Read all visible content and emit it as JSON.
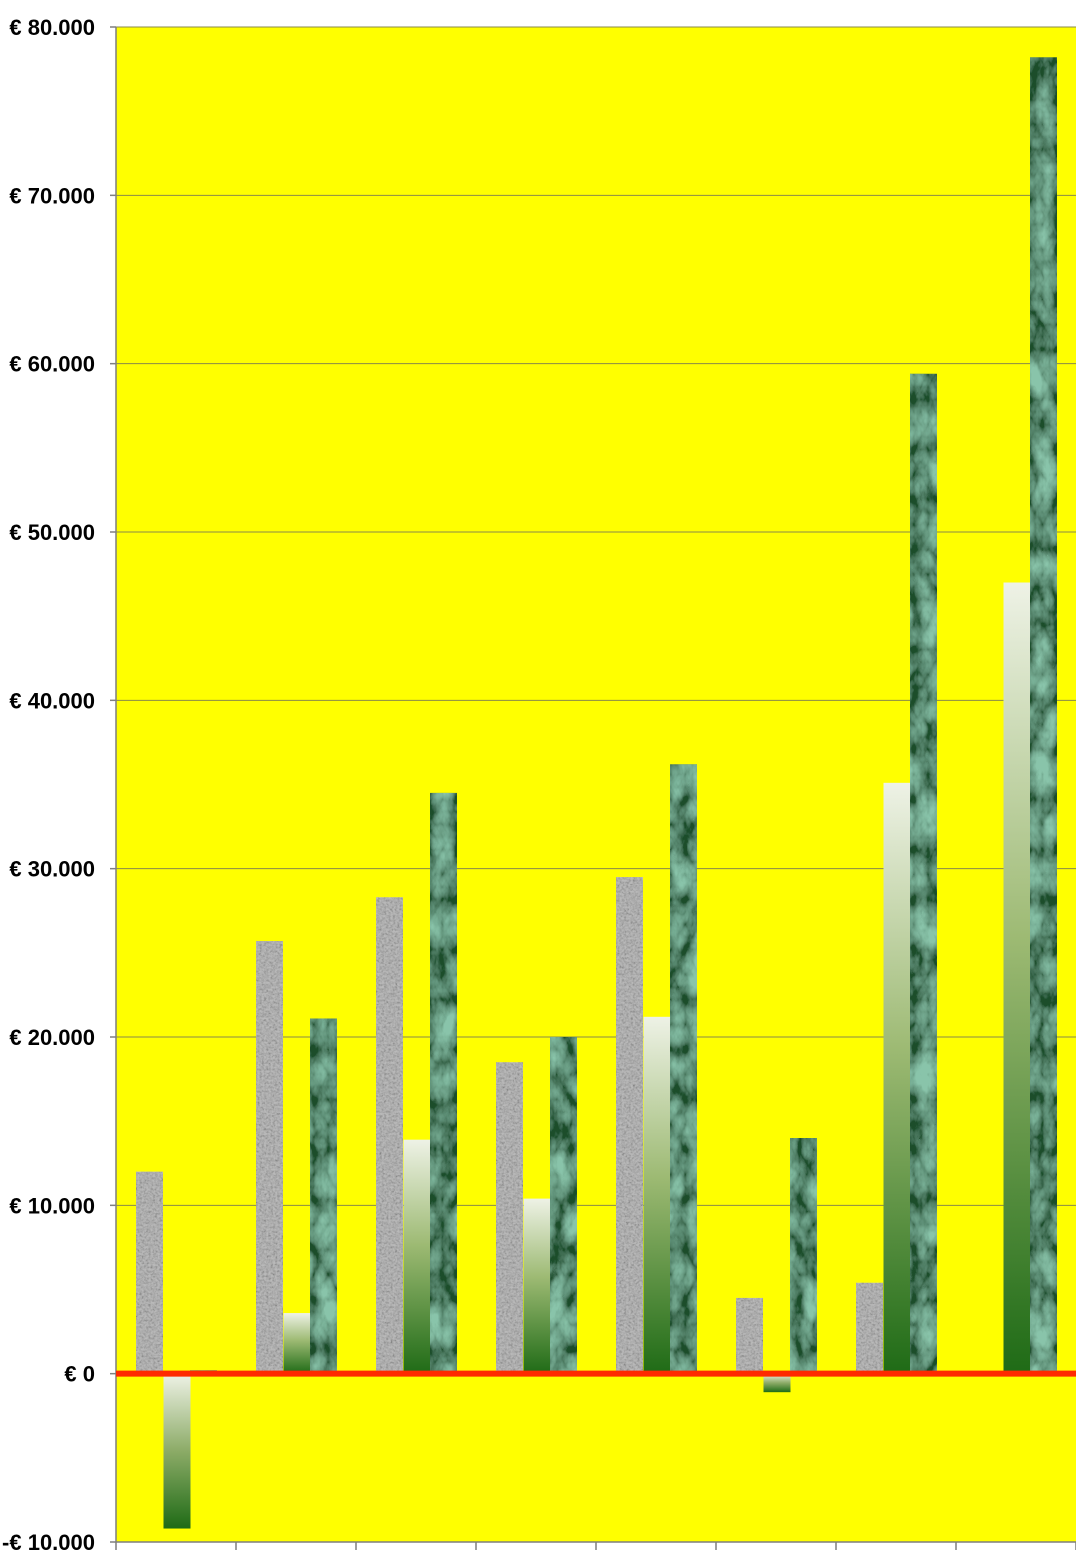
{
  "chart_data": {
    "type": "bar",
    "title": "",
    "xlabel": "",
    "ylabel": "",
    "ylim": [
      -10000,
      80000
    ],
    "y_ticks": [
      -10000,
      0,
      10000,
      20000,
      30000,
      40000,
      50000,
      60000,
      70000,
      80000
    ],
    "y_tick_labels": [
      "-€ 10.000",
      "€ 0",
      "€ 10.000",
      "€ 20.000",
      "€ 30.000",
      "€ 40.000",
      "€ 50.000",
      "€ 60.000",
      "€ 70.000",
      "€ 80.000"
    ],
    "categories": [
      "",
      "",
      "",
      "",
      "",
      "",
      "",
      ""
    ],
    "series": [
      {
        "values": [
          12000,
          25700,
          28300,
          18500,
          29500,
          4500,
          5400,
          0
        ]
      },
      {
        "values": [
          -9200,
          3600,
          13900,
          10400,
          21200,
          -1100,
          35100,
          47000
        ]
      },
      {
        "values": [
          200,
          21100,
          34500,
          20000,
          36200,
          14000,
          59400,
          78200
        ]
      }
    ],
    "grid": true,
    "legend": "none",
    "colors": {
      "plot_background": "#ffff00",
      "zero_line": "#ff2a00",
      "gridline": "#8a8a4a",
      "series_1": "#b9b9b9",
      "series_2_top": "#eef2e6",
      "series_2_bottom": "#1f6b16",
      "series_3": "#1c4d2c"
    }
  }
}
